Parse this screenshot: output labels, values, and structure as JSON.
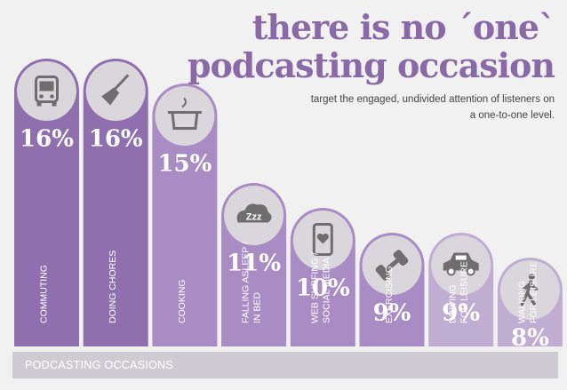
{
  "header": {
    "title_line1": "there is no ´one`",
    "title_line2": "podcasting occasion",
    "subtitle": "target the engaged, undivided attention of listeners on a one-to-one level."
  },
  "footer": {
    "label": "PODCASTING OCCASIONS"
  },
  "colors": {
    "bar_dark": "#8f6fae",
    "bar_mid": "#a98cc3",
    "bar_light": "#c0aed2",
    "circle": "#d9d6dc",
    "icon": "#6e6e6e",
    "title": "#8a6aa6",
    "footer": "#cfcbd2"
  },
  "chart_data": {
    "type": "bar",
    "unit": "%",
    "categories": [
      [
        "COMMUTING"
      ],
      [
        "DOING CHORES"
      ],
      [
        "COOKING"
      ],
      [
        "FALLING ASLEEP /",
        "IN BED"
      ],
      [
        "WEB SURFING /",
        "SOCIAL MEDIA"
      ],
      [
        "EXERCISING"
      ],
      [
        "DRIVING",
        "FOR LEISURE"
      ],
      [
        "WALKING",
        "FOR LEISURE"
      ]
    ],
    "values": [
      16,
      16,
      15,
      11,
      10,
      9,
      9,
      8
    ],
    "labels": [
      "16%",
      "16%",
      "15%",
      "11%",
      "10%",
      "9%",
      "9%",
      "8%"
    ],
    "icons": [
      "bus-icon",
      "broom-icon",
      "cooking-pot-icon",
      "sleep-cloud-icon",
      "phone-heart-icon",
      "dumbbell-icon",
      "car-icon",
      "walking-person-icon"
    ],
    "xlabel": "PODCASTING OCCASIONS",
    "ylabel": ""
  }
}
